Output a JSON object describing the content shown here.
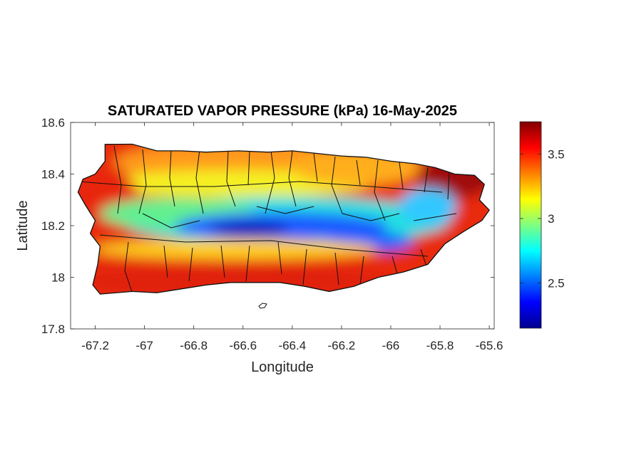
{
  "chart_data": {
    "type": "heatmap",
    "title": "SATURATED VAPOR PRESSURE (kPa) 16-May-2025",
    "xlabel": "Longitude",
    "ylabel": "Latitude",
    "xlim": [
      -67.3,
      -65.58
    ],
    "ylim": [
      17.8,
      18.6
    ],
    "xticks": [
      -67.2,
      -67,
      -66.8,
      -66.6,
      -66.4,
      -66.2,
      -66,
      -65.8,
      -65.6
    ],
    "xtick_labels": [
      "-67.2",
      "-67",
      "-66.8",
      "-66.6",
      "-66.4",
      "-66.2",
      "-66",
      "-65.8",
      "-65.6"
    ],
    "yticks": [
      17.8,
      18,
      18.2,
      18.4,
      18.6
    ],
    "ytick_labels": [
      "17.8",
      "18",
      "18.2",
      "18.4",
      "18.6"
    ],
    "colorbar": {
      "colormap": "jet",
      "clim": [
        2.15,
        3.75
      ],
      "ticks": [
        2.5,
        3,
        3.5
      ],
      "tick_labels": [
        "2.5",
        "3",
        "3.5"
      ]
    },
    "grid": false,
    "legend": false
  }
}
